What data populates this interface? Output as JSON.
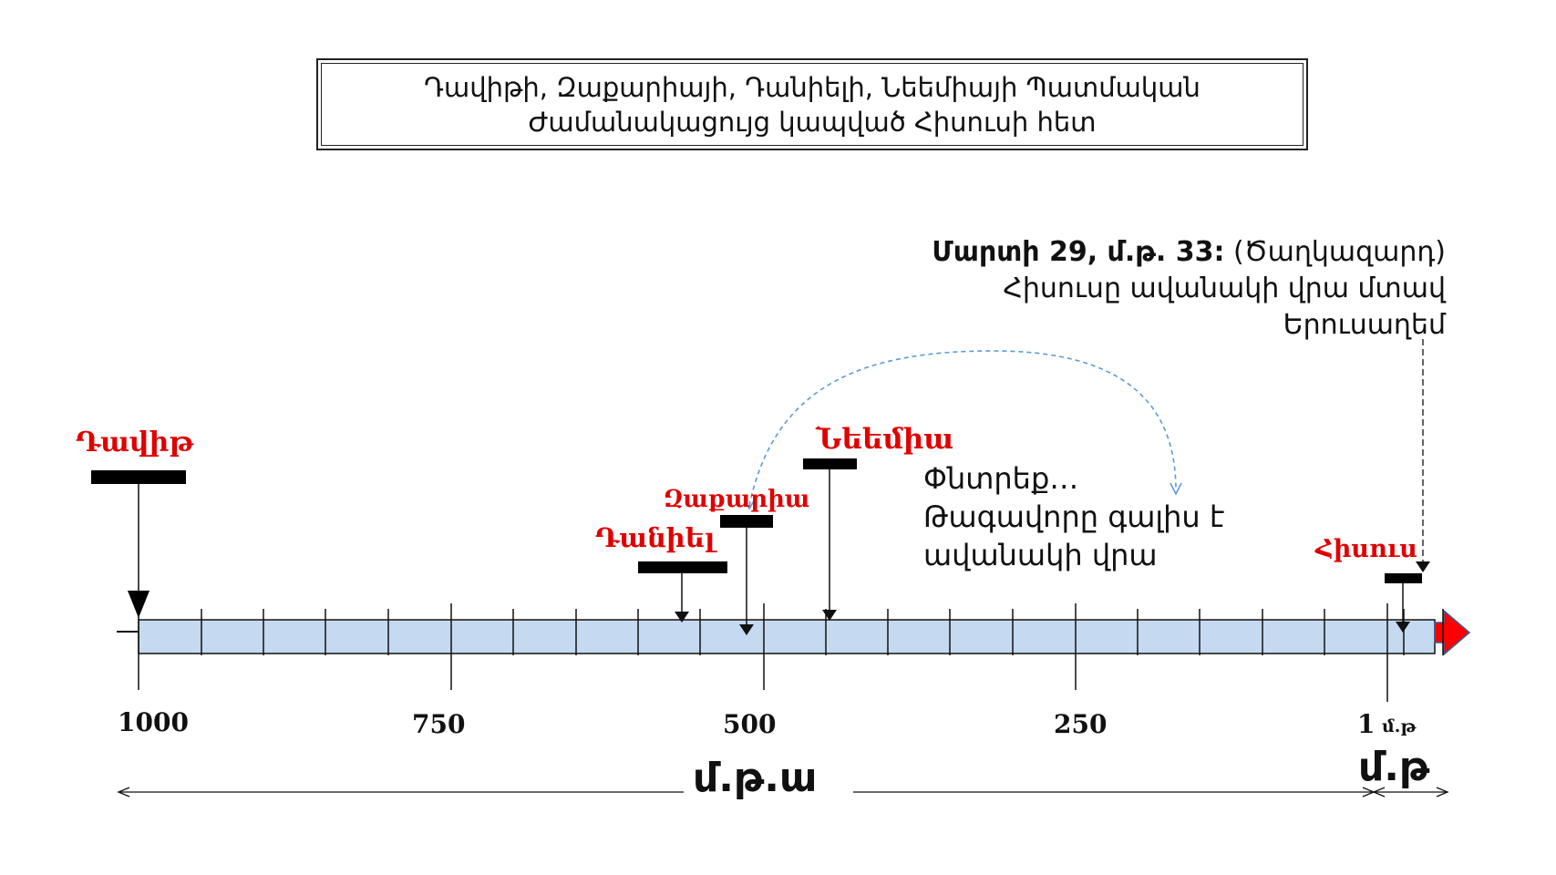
{
  "title": {
    "line1": "Դավիթի, Զաքարիայի, Դանիելի, Նեեմիայի Պատմական",
    "line2": "Ժամանակացույց կապված Հիսուսի հետ"
  },
  "people": {
    "david": "Դավիթ",
    "daniel": "Դանիել",
    "zechariah": "Զաքարիա",
    "nehemiah": "Նեեմիա",
    "jesus": "Հիսուս"
  },
  "note": {
    "date": "Մարտի 29, մ.թ. 33:",
    "tag": "(Ծաղկազարդ)",
    "line2": "Հիսուսը ավանակի վրա մտավ",
    "line3": "Երուսաղեմ"
  },
  "prophecy": {
    "line1": "Փնտրեք…",
    "line2": "Թագավորը գալիս է",
    "line3": "ավանակի վրա"
  },
  "axis": {
    "tick_1000": "1000",
    "tick_750": "750",
    "tick_500": "500",
    "tick_250": "250",
    "tick_1": "1",
    "tick_1_suffix": "մ.թ",
    "bc_label": "մ.թ.ա",
    "ad_label": "մ.թ"
  },
  "colors": {
    "timeline_fill": "#c5d9f1",
    "arrow_red": "#ff0000",
    "label_red": "#e00000",
    "dashed_blue": "#5b9bd5"
  }
}
